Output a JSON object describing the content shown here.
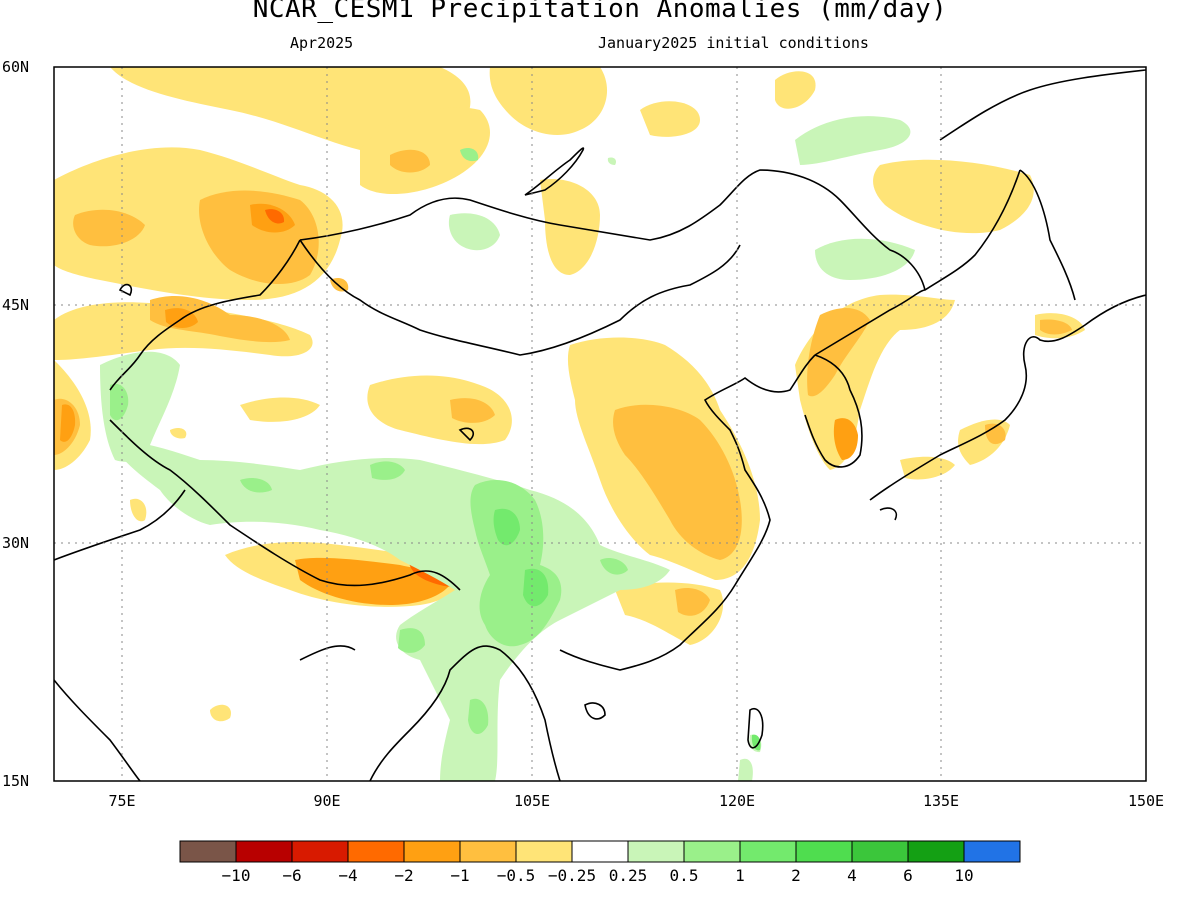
{
  "title": "NCAR_CESM1 Precipitation Anomalies (mm/day)",
  "subtitle_left": "Apr2025",
  "subtitle_right": "January2025 initial conditions",
  "axes": {
    "lat_labels": [
      "60N",
      "45N",
      "30N",
      "15N"
    ],
    "lon_labels": [
      "75E",
      "90E",
      "105E",
      "120E",
      "135E",
      "150E"
    ]
  },
  "colorbar": {
    "colors": [
      "#7a5548",
      "#b80000",
      "#d81a00",
      "#ff6a00",
      "#ffa012",
      "#ffbf3f",
      "#ffe477",
      "#ffffff",
      "#c9f5b8",
      "#9af08a",
      "#73ea6d",
      "#4fdd4f",
      "#3bc63b",
      "#14a014",
      "#2173e6"
    ],
    "labels": [
      "−10",
      "−6",
      "−4",
      "−2",
      "−1",
      "−0.5",
      "−0.25",
      "0.25",
      "0.5",
      "1",
      "2",
      "4",
      "6",
      "10"
    ]
  },
  "map_regions": [
    {
      "name": "west-siberia-dry",
      "class": "-0.5"
    },
    {
      "name": "altai-dry",
      "class": "-1"
    },
    {
      "name": "kazakhstan-dry",
      "class": "-0.5"
    },
    {
      "name": "tarim-dry",
      "class": "-0.25"
    },
    {
      "name": "tibet-wet",
      "class": "0.5"
    },
    {
      "name": "sichuan-yunnan-wet",
      "class": "1"
    },
    {
      "name": "east-himalaya-dry",
      "class": "-2"
    },
    {
      "name": "east-china-dry",
      "class": "-1"
    },
    {
      "name": "manchuria-korea-dry",
      "class": "-1"
    },
    {
      "name": "southeast-asia-wet",
      "class": "0.5"
    },
    {
      "name": "japan-dry",
      "class": "-1"
    }
  ]
}
